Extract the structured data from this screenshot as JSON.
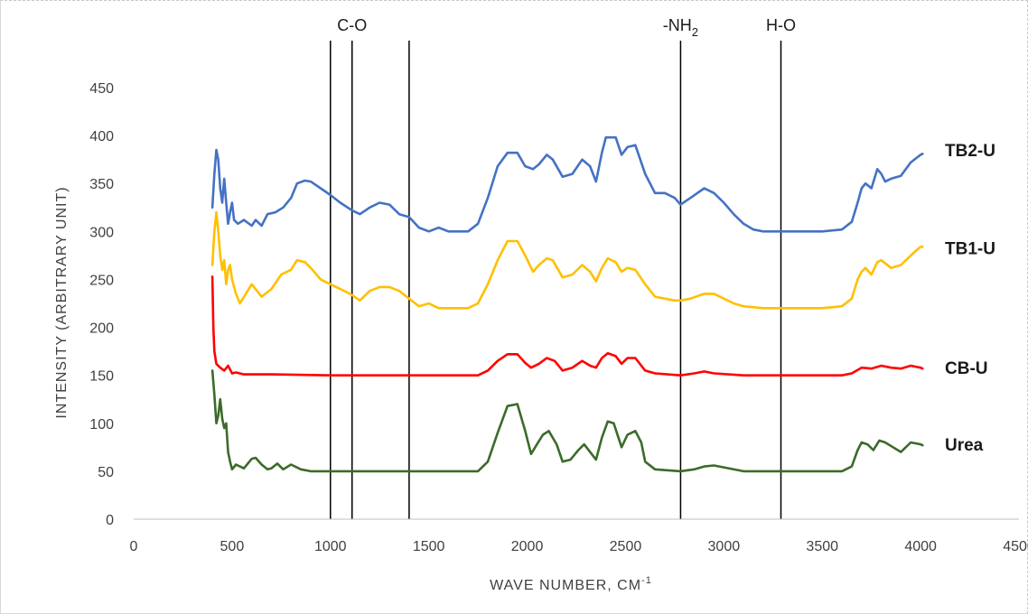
{
  "chart_data": {
    "type": "line",
    "xlabel": "WAVE NUMBER, CM",
    "xlabel_sup": "-1",
    "ylabel": "INTENSITY (ARBITRARY UNIT)",
    "xlim": [
      0,
      4500
    ],
    "ylim": [
      0,
      450
    ],
    "x_ticks": [
      "0",
      "500",
      "1000",
      "1500",
      "2000",
      "2500",
      "3000",
      "3500",
      "4000",
      "4500"
    ],
    "y_ticks": [
      "0",
      "50",
      "100",
      "150",
      "200",
      "250",
      "300",
      "350",
      "400",
      "450"
    ],
    "grid": false,
    "markers": [
      {
        "x": 1000
      },
      {
        "x": 1110
      },
      {
        "x": 1400
      },
      {
        "x": 2780
      },
      {
        "x": 3290
      }
    ],
    "marker_labels": [
      {
        "text": "C-O",
        "x": 1110
      },
      {
        "text": "-NH",
        "sub": "2",
        "x": 2780
      },
      {
        "text": "H-O",
        "x": 3290
      }
    ],
    "series": [
      {
        "name": "TB2-U",
        "color": "#4472c4",
        "label_y": 385,
        "points": [
          [
            400,
            325
          ],
          [
            410,
            360
          ],
          [
            420,
            385
          ],
          [
            430,
            375
          ],
          [
            440,
            345
          ],
          [
            450,
            330
          ],
          [
            460,
            355
          ],
          [
            470,
            330
          ],
          [
            480,
            308
          ],
          [
            490,
            320
          ],
          [
            500,
            330
          ],
          [
            510,
            312
          ],
          [
            530,
            308
          ],
          [
            560,
            312
          ],
          [
            600,
            306
          ],
          [
            620,
            312
          ],
          [
            650,
            306
          ],
          [
            680,
            318
          ],
          [
            720,
            320
          ],
          [
            760,
            325
          ],
          [
            800,
            335
          ],
          [
            830,
            350
          ],
          [
            870,
            353
          ],
          [
            900,
            352
          ],
          [
            950,
            345
          ],
          [
            1000,
            338
          ],
          [
            1050,
            330
          ],
          [
            1110,
            322
          ],
          [
            1150,
            318
          ],
          [
            1200,
            325
          ],
          [
            1250,
            330
          ],
          [
            1300,
            328
          ],
          [
            1350,
            318
          ],
          [
            1400,
            315
          ],
          [
            1450,
            304
          ],
          [
            1500,
            300
          ],
          [
            1550,
            304
          ],
          [
            1600,
            300
          ],
          [
            1700,
            300
          ],
          [
            1750,
            308
          ],
          [
            1800,
            335
          ],
          [
            1850,
            368
          ],
          [
            1900,
            382
          ],
          [
            1950,
            382
          ],
          [
            1990,
            368
          ],
          [
            2030,
            365
          ],
          [
            2060,
            370
          ],
          [
            2100,
            380
          ],
          [
            2130,
            375
          ],
          [
            2180,
            357
          ],
          [
            2230,
            360
          ],
          [
            2280,
            375
          ],
          [
            2320,
            368
          ],
          [
            2350,
            352
          ],
          [
            2380,
            382
          ],
          [
            2400,
            398
          ],
          [
            2450,
            398
          ],
          [
            2480,
            380
          ],
          [
            2510,
            388
          ],
          [
            2550,
            390
          ],
          [
            2600,
            360
          ],
          [
            2650,
            340
          ],
          [
            2700,
            340
          ],
          [
            2750,
            335
          ],
          [
            2780,
            328
          ],
          [
            2830,
            335
          ],
          [
            2900,
            345
          ],
          [
            2950,
            340
          ],
          [
            3000,
            330
          ],
          [
            3050,
            318
          ],
          [
            3100,
            308
          ],
          [
            3150,
            302
          ],
          [
            3200,
            300
          ],
          [
            3300,
            300
          ],
          [
            3400,
            300
          ],
          [
            3500,
            300
          ],
          [
            3600,
            302
          ],
          [
            3650,
            310
          ],
          [
            3680,
            330
          ],
          [
            3700,
            345
          ],
          [
            3720,
            350
          ],
          [
            3750,
            345
          ],
          [
            3780,
            365
          ],
          [
            3800,
            360
          ],
          [
            3820,
            352
          ],
          [
            3850,
            355
          ],
          [
            3900,
            358
          ],
          [
            3950,
            372
          ],
          [
            4000,
            380
          ],
          [
            4010,
            381
          ]
        ]
      },
      {
        "name": "TB1-U",
        "color": "#ffc000",
        "label_y": 283,
        "points": [
          [
            400,
            265
          ],
          [
            410,
            300
          ],
          [
            420,
            320
          ],
          [
            430,
            300
          ],
          [
            440,
            275
          ],
          [
            450,
            260
          ],
          [
            460,
            270
          ],
          [
            470,
            245
          ],
          [
            480,
            260
          ],
          [
            490,
            265
          ],
          [
            500,
            250
          ],
          [
            520,
            235
          ],
          [
            540,
            225
          ],
          [
            570,
            235
          ],
          [
            600,
            245
          ],
          [
            650,
            232
          ],
          [
            700,
            240
          ],
          [
            750,
            255
          ],
          [
            800,
            260
          ],
          [
            830,
            270
          ],
          [
            870,
            268
          ],
          [
            900,
            262
          ],
          [
            950,
            250
          ],
          [
            1000,
            245
          ],
          [
            1050,
            240
          ],
          [
            1100,
            235
          ],
          [
            1150,
            228
          ],
          [
            1200,
            238
          ],
          [
            1250,
            242
          ],
          [
            1300,
            242
          ],
          [
            1350,
            238
          ],
          [
            1400,
            230
          ],
          [
            1450,
            222
          ],
          [
            1500,
            225
          ],
          [
            1550,
            220
          ],
          [
            1700,
            220
          ],
          [
            1750,
            225
          ],
          [
            1800,
            245
          ],
          [
            1850,
            270
          ],
          [
            1900,
            290
          ],
          [
            1950,
            290
          ],
          [
            1990,
            275
          ],
          [
            2030,
            258
          ],
          [
            2060,
            265
          ],
          [
            2100,
            272
          ],
          [
            2130,
            270
          ],
          [
            2180,
            252
          ],
          [
            2230,
            255
          ],
          [
            2280,
            265
          ],
          [
            2320,
            258
          ],
          [
            2350,
            248
          ],
          [
            2380,
            262
          ],
          [
            2410,
            272
          ],
          [
            2450,
            268
          ],
          [
            2480,
            258
          ],
          [
            2510,
            262
          ],
          [
            2550,
            260
          ],
          [
            2600,
            245
          ],
          [
            2650,
            232
          ],
          [
            2700,
            230
          ],
          [
            2750,
            228
          ],
          [
            2780,
            228
          ],
          [
            2830,
            230
          ],
          [
            2900,
            235
          ],
          [
            2950,
            235
          ],
          [
            3000,
            230
          ],
          [
            3050,
            225
          ],
          [
            3100,
            222
          ],
          [
            3200,
            220
          ],
          [
            3500,
            220
          ],
          [
            3600,
            222
          ],
          [
            3650,
            230
          ],
          [
            3680,
            250
          ],
          [
            3700,
            258
          ],
          [
            3720,
            262
          ],
          [
            3750,
            255
          ],
          [
            3780,
            268
          ],
          [
            3800,
            270
          ],
          [
            3850,
            262
          ],
          [
            3900,
            265
          ],
          [
            3950,
            275
          ],
          [
            4000,
            284
          ],
          [
            4010,
            284
          ]
        ]
      },
      {
        "name": "CB-U",
        "color": "#ff0000",
        "label_y": 158,
        "points": [
          [
            400,
            253
          ],
          [
            405,
            200
          ],
          [
            410,
            175
          ],
          [
            420,
            162
          ],
          [
            440,
            158
          ],
          [
            460,
            155
          ],
          [
            480,
            160
          ],
          [
            500,
            152
          ],
          [
            520,
            153
          ],
          [
            560,
            151
          ],
          [
            700,
            151
          ],
          [
            1000,
            150
          ],
          [
            1500,
            150
          ],
          [
            1750,
            150
          ],
          [
            1800,
            155
          ],
          [
            1850,
            165
          ],
          [
            1900,
            172
          ],
          [
            1950,
            172
          ],
          [
            1990,
            163
          ],
          [
            2020,
            158
          ],
          [
            2060,
            162
          ],
          [
            2100,
            168
          ],
          [
            2140,
            165
          ],
          [
            2180,
            155
          ],
          [
            2230,
            158
          ],
          [
            2280,
            165
          ],
          [
            2320,
            160
          ],
          [
            2350,
            158
          ],
          [
            2380,
            168
          ],
          [
            2410,
            173
          ],
          [
            2450,
            170
          ],
          [
            2480,
            162
          ],
          [
            2510,
            168
          ],
          [
            2550,
            168
          ],
          [
            2600,
            155
          ],
          [
            2650,
            152
          ],
          [
            2780,
            150
          ],
          [
            2850,
            152
          ],
          [
            2900,
            154
          ],
          [
            2950,
            152
          ],
          [
            3100,
            150
          ],
          [
            3600,
            150
          ],
          [
            3650,
            152
          ],
          [
            3700,
            158
          ],
          [
            3750,
            157
          ],
          [
            3800,
            160
          ],
          [
            3850,
            158
          ],
          [
            3900,
            157
          ],
          [
            3950,
            160
          ],
          [
            4000,
            158
          ],
          [
            4010,
            157
          ]
        ]
      },
      {
        "name": "Urea",
        "color": "#3b6b2a",
        "label_y": 78,
        "points": [
          [
            400,
            155
          ],
          [
            410,
            130
          ],
          [
            420,
            100
          ],
          [
            430,
            108
          ],
          [
            440,
            125
          ],
          [
            450,
            105
          ],
          [
            460,
            95
          ],
          [
            470,
            100
          ],
          [
            480,
            70
          ],
          [
            490,
            60
          ],
          [
            500,
            52
          ],
          [
            520,
            57
          ],
          [
            540,
            55
          ],
          [
            560,
            53
          ],
          [
            580,
            58
          ],
          [
            600,
            63
          ],
          [
            620,
            64
          ],
          [
            650,
            57
          ],
          [
            680,
            52
          ],
          [
            700,
            53
          ],
          [
            730,
            58
          ],
          [
            760,
            52
          ],
          [
            800,
            57
          ],
          [
            850,
            52
          ],
          [
            900,
            50
          ],
          [
            1000,
            50
          ],
          [
            1500,
            50
          ],
          [
            1750,
            50
          ],
          [
            1800,
            60
          ],
          [
            1850,
            90
          ],
          [
            1900,
            118
          ],
          [
            1950,
            120
          ],
          [
            1990,
            92
          ],
          [
            2020,
            68
          ],
          [
            2050,
            78
          ],
          [
            2080,
            88
          ],
          [
            2110,
            92
          ],
          [
            2150,
            78
          ],
          [
            2180,
            60
          ],
          [
            2220,
            62
          ],
          [
            2260,
            72
          ],
          [
            2290,
            78
          ],
          [
            2320,
            70
          ],
          [
            2350,
            62
          ],
          [
            2380,
            85
          ],
          [
            2410,
            102
          ],
          [
            2440,
            100
          ],
          [
            2480,
            75
          ],
          [
            2510,
            88
          ],
          [
            2550,
            92
          ],
          [
            2580,
            80
          ],
          [
            2600,
            60
          ],
          [
            2650,
            52
          ],
          [
            2780,
            50
          ],
          [
            2850,
            52
          ],
          [
            2900,
            55
          ],
          [
            2950,
            56
          ],
          [
            3000,
            54
          ],
          [
            3100,
            50
          ],
          [
            3600,
            50
          ],
          [
            3650,
            55
          ],
          [
            3680,
            72
          ],
          [
            3700,
            80
          ],
          [
            3730,
            78
          ],
          [
            3760,
            72
          ],
          [
            3790,
            82
          ],
          [
            3820,
            80
          ],
          [
            3860,
            75
          ],
          [
            3900,
            70
          ],
          [
            3950,
            80
          ],
          [
            4000,
            78
          ],
          [
            4010,
            77
          ]
        ]
      }
    ]
  }
}
